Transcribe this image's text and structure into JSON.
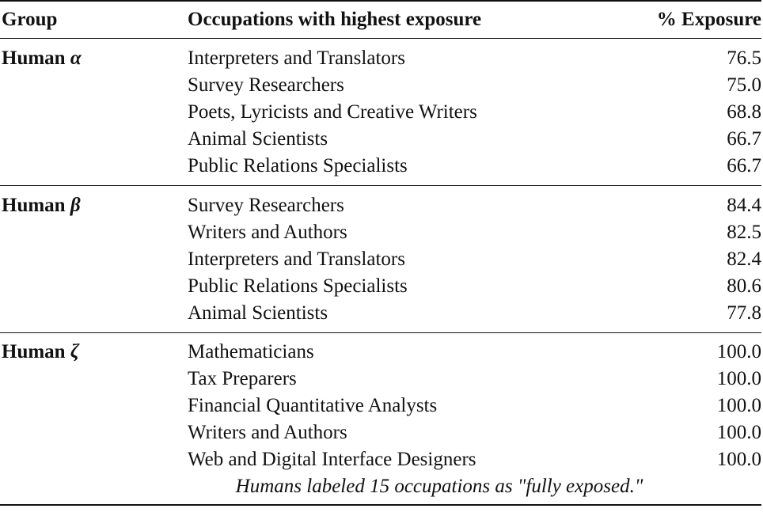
{
  "header": {
    "group": "Group",
    "occupations": "Occupations with highest exposure",
    "exposure": "% Exposure"
  },
  "groups": [
    {
      "name": "Human",
      "symbol": "α",
      "rows": [
        {
          "occupation": "Interpreters and Translators",
          "exposure": "76.5"
        },
        {
          "occupation": "Survey Researchers",
          "exposure": "75.0"
        },
        {
          "occupation": "Poets, Lyricists and Creative Writers",
          "exposure": "68.8"
        },
        {
          "occupation": "Animal Scientists",
          "exposure": "66.7"
        },
        {
          "occupation": "Public Relations Specialists",
          "exposure": "66.7"
        }
      ]
    },
    {
      "name": "Human",
      "symbol": "β",
      "rows": [
        {
          "occupation": "Survey Researchers",
          "exposure": "84.4"
        },
        {
          "occupation": "Writers and Authors",
          "exposure": "82.5"
        },
        {
          "occupation": "Interpreters and Translators",
          "exposure": "82.4"
        },
        {
          "occupation": "Public Relations Specialists",
          "exposure": "80.6"
        },
        {
          "occupation": "Animal Scientists",
          "exposure": "77.8"
        }
      ]
    },
    {
      "name": "Human",
      "symbol": "ζ",
      "rows": [
        {
          "occupation": "Mathematicians",
          "exposure": "100.0"
        },
        {
          "occupation": "Tax Preparers",
          "exposure": "100.0"
        },
        {
          "occupation": "Financial Quantitative Analysts",
          "exposure": "100.0"
        },
        {
          "occupation": "Writers and Authors",
          "exposure": "100.0"
        },
        {
          "occupation": "Web and Digital Interface Designers",
          "exposure": "100.0"
        }
      ],
      "note": "Humans labeled 15 occupations as \"fully exposed.\""
    }
  ]
}
